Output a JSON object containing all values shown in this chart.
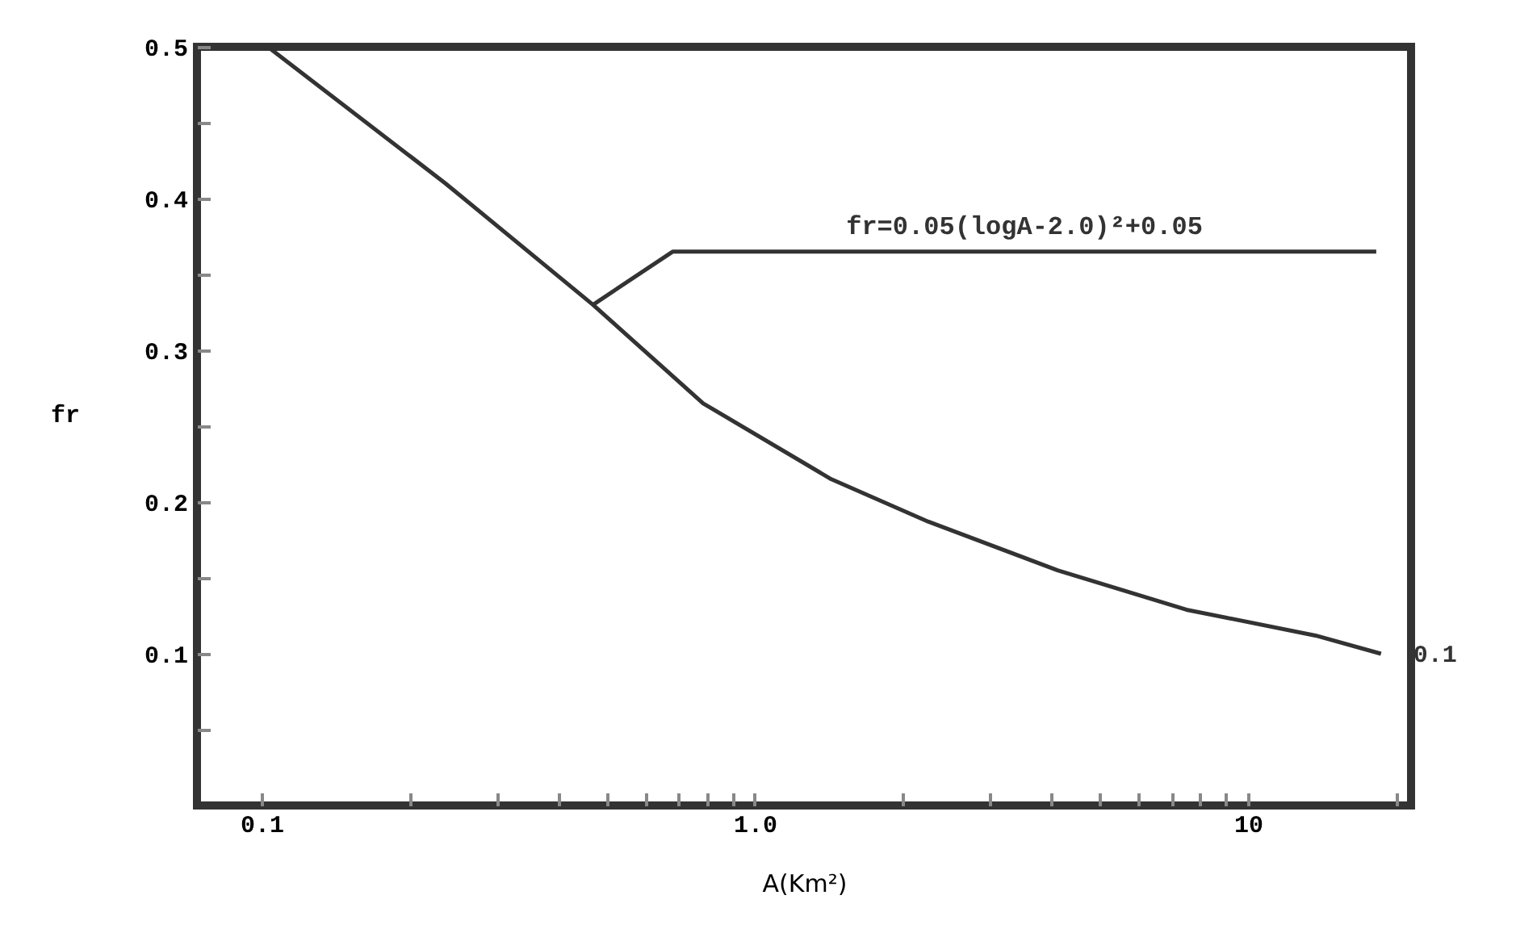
{
  "chart_data": {
    "type": "line",
    "xlabel": "A(Km²)",
    "ylabel": "fr",
    "log": "x",
    "grid": false,
    "marker": "none",
    "line_style": "solid",
    "x": [
      0.103,
      0.236,
      0.47,
      0.786,
      1.43,
      2.25,
      4.11,
      7.5,
      13.7,
      18.6
    ],
    "series": [
      {
        "color": "#333333",
        "values": [
          0.5,
          0.41,
          0.33,
          0.265,
          0.215,
          0.187,
          0.155,
          0.129,
          0.112,
          0.1
        ]
      }
    ],
    "xlim": [
      0.074,
      21.4
    ],
    "ylim": [
      0,
      0.5
    ],
    "xticks": [
      0.1,
      {
        "value": 0.2,
        "label": null
      },
      {
        "value": 0.3,
        "label": null
      },
      {
        "value": 0.4,
        "label": null
      },
      {
        "value": 0.5,
        "label": null
      },
      {
        "value": 0.6,
        "label": null
      },
      {
        "value": 0.7,
        "label": null
      },
      {
        "value": 0.8,
        "label": null
      },
      {
        "value": 0.9,
        "label": null
      },
      {
        "value": 1,
        "label": "1.0"
      },
      {
        "value": 2,
        "label": null
      },
      {
        "value": 3,
        "label": null
      },
      {
        "value": 4,
        "label": null
      },
      {
        "value": 5,
        "label": null
      },
      {
        "value": 6,
        "label": null
      },
      {
        "value": 7,
        "label": null
      },
      {
        "value": 8,
        "label": null
      },
      {
        "value": 9,
        "label": null
      },
      10,
      {
        "value": 20,
        "label": null
      }
    ],
    "yticks": [
      {
        "value": 0.05,
        "label": null
      },
      0.1,
      {
        "value": 0.15,
        "label": null
      },
      0.2,
      {
        "value": 0.25,
        "label": null
      },
      0.3,
      {
        "value": 0.35,
        "label": null
      },
      0.4,
      {
        "value": 0.45,
        "label": null
      },
      0.5
    ],
    "annotations": [
      {
        "text": "fr=0.05(logA-2.0)²+0.05",
        "x": 0.47,
        "y": 0.33
      },
      {
        "text": "0.1",
        "x": 18.6,
        "y": 0.1
      }
    ]
  }
}
